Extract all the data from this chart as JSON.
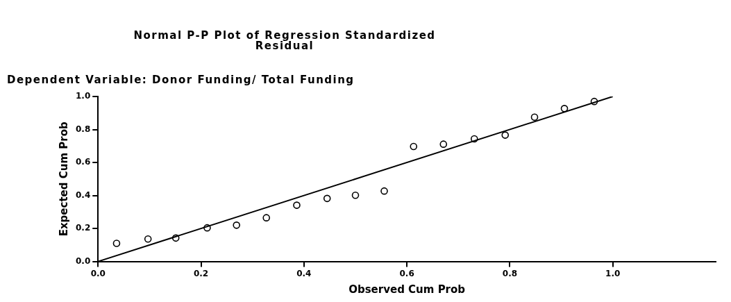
{
  "chart_data": {
    "type": "scatter",
    "title": "Normal P-P Plot of Regression Standardized Residual",
    "subtitle": "Dependent Variable: Donor Funding/ Total Funding",
    "xlabel": "Observed Cum Prob",
    "ylabel": "Expected Cum Prob",
    "xlim": [
      0,
      1.2
    ],
    "ylim": [
      0,
      1
    ],
    "xticks": [
      {
        "value": 0,
        "label": "0.0"
      },
      {
        "value": 0.2,
        "label": "0.2"
      },
      {
        "value": 0.4,
        "label": "0.4"
      },
      {
        "value": 0.6,
        "label": "0.6"
      },
      {
        "value": 0.8,
        "label": "0.8"
      },
      {
        "value": 1,
        "label": "1.0"
      }
    ],
    "yticks": [
      {
        "value": 0,
        "label": "0.0"
      },
      {
        "value": 0.2,
        "label": "0.2"
      },
      {
        "value": 0.4,
        "label": "0.4"
      },
      {
        "value": 0.6,
        "label": "0.6"
      },
      {
        "value": 0.8,
        "label": "0.8"
      },
      {
        "value": 1,
        "label": "1.0"
      }
    ],
    "grid": false,
    "legend": false,
    "series": [
      {
        "marker": "circle",
        "color": "#000000",
        "x": [
          0.036,
          0.097,
          0.151,
          0.212,
          0.269,
          0.327,
          0.386,
          0.445,
          0.5,
          0.556,
          0.613,
          0.671,
          0.731,
          0.791,
          0.848,
          0.906,
          0.964
        ],
        "values": [
          0.11,
          0.136,
          0.142,
          0.204,
          0.22,
          0.265,
          0.341,
          0.382,
          0.401,
          0.427,
          0.697,
          0.711,
          0.743,
          0.766,
          0.875,
          0.927,
          0.97
        ]
      },
      {
        "type": "line",
        "marker": "none",
        "color": "#000000",
        "x": [
          0,
          1
        ],
        "values": [
          0,
          1
        ]
      }
    ]
  }
}
